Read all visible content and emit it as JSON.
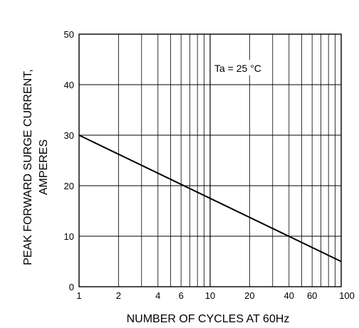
{
  "chart_data": {
    "type": "line",
    "title": "",
    "xlabel": "NUMBER OF CYCLES AT 60Hz",
    "ylabel_lines": [
      "PEAK FORWARD SURGE CURRENT,",
      "AMPERES"
    ],
    "x_scale": "log",
    "xlim": [
      1,
      100
    ],
    "ylim": [
      0,
      50
    ],
    "x_ticks": [
      1,
      2,
      4,
      6,
      10,
      20,
      40,
      60,
      100
    ],
    "x_tick_labels": [
      "1",
      "2",
      "4",
      "6",
      "10",
      "20",
      "40",
      "60",
      "100"
    ],
    "y_ticks": [
      0,
      10,
      20,
      30,
      40,
      50
    ],
    "y_tick_labels": [
      "0",
      "10",
      "20",
      "30",
      "40",
      "50"
    ],
    "grid": true,
    "annotation": "Ta = 25 °C",
    "series": [
      {
        "x": [
          1,
          100
        ],
        "y": [
          30,
          5
        ]
      }
    ]
  }
}
